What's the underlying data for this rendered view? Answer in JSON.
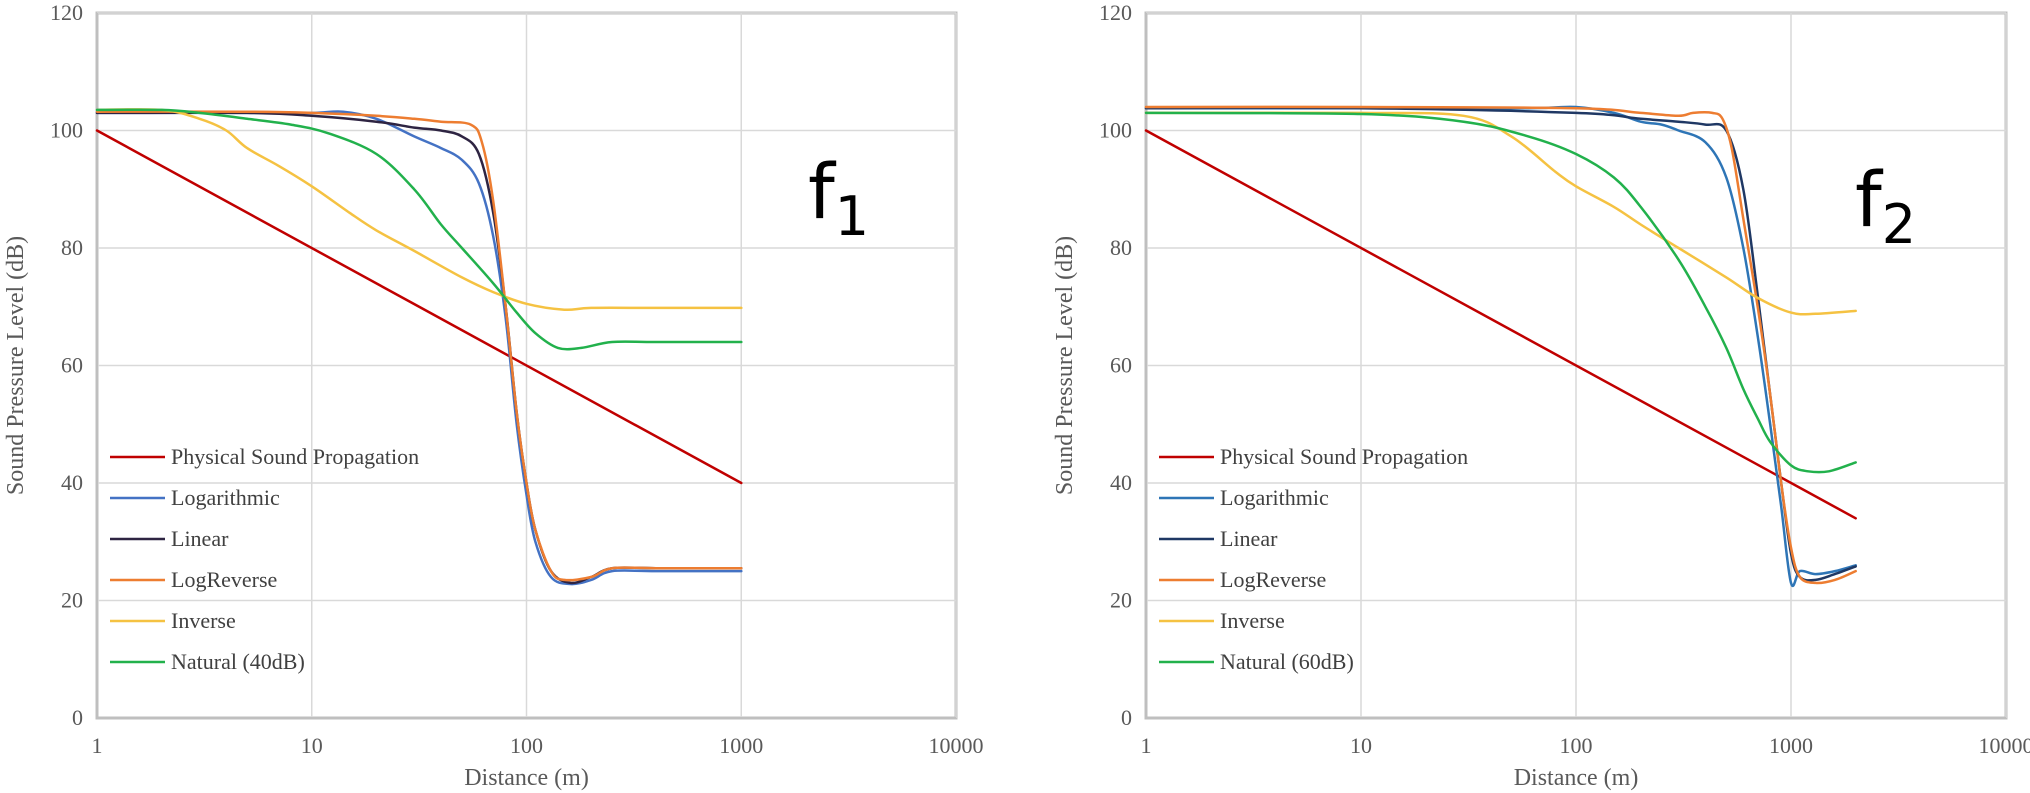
{
  "chart_data": [
    {
      "type": "line",
      "annotation": {
        "base": "f",
        "subscript": "1"
      },
      "xlabel": "Distance (m)",
      "ylabel": "Sound Pressure Level (dB)",
      "xscale": "log",
      "xlim": [
        1,
        10000
      ],
      "ylim": [
        0,
        120
      ],
      "xticks": [
        "1",
        "10",
        "100",
        "1000",
        "10000"
      ],
      "yticks": [
        "0",
        "20",
        "40",
        "60",
        "80",
        "100",
        "120"
      ],
      "grid": true,
      "legend_position": "bottom-left",
      "series": [
        {
          "name": "Physical Sound Propagation",
          "color": "#C00000",
          "points": [
            [
              1,
              100
            ],
            [
              1000,
              40
            ]
          ]
        },
        {
          "name": "Logarithmic",
          "color": "#4472C4",
          "points": [
            [
              1,
              103
            ],
            [
              5,
              103
            ],
            [
              10,
              103
            ],
            [
              14,
              103.2
            ],
            [
              20,
              102
            ],
            [
              30,
              99
            ],
            [
              40,
              97
            ],
            [
              50,
              95
            ],
            [
              60,
              91
            ],
            [
              70,
              82
            ],
            [
              80,
              68
            ],
            [
              90,
              50
            ],
            [
              100,
              38
            ],
            [
              110,
              30
            ],
            [
              130,
              24
            ],
            [
              160,
              22.8
            ],
            [
              200,
              23.5
            ],
            [
              250,
              25
            ],
            [
              400,
              25
            ],
            [
              1000,
              25
            ]
          ]
        },
        {
          "name": "Linear",
          "color": "#2E2442",
          "points": [
            [
              1,
              103
            ],
            [
              5,
              103
            ],
            [
              10,
              102.5
            ],
            [
              20,
              101.5
            ],
            [
              30,
              100.5
            ],
            [
              40,
              100
            ],
            [
              50,
              99
            ],
            [
              60,
              96
            ],
            [
              70,
              86
            ],
            [
              80,
              70
            ],
            [
              90,
              52
            ],
            [
              100,
              40
            ],
            [
              110,
              32
            ],
            [
              130,
              25
            ],
            [
              160,
              23
            ],
            [
              200,
              24
            ],
            [
              250,
              25.5
            ],
            [
              400,
              25.5
            ],
            [
              1000,
              25.5
            ]
          ]
        },
        {
          "name": "LogReverse",
          "color": "#ED7D31",
          "points": [
            [
              1,
              103.2
            ],
            [
              5,
              103.2
            ],
            [
              10,
              103
            ],
            [
              20,
              102.5
            ],
            [
              30,
              102
            ],
            [
              40,
              101.5
            ],
            [
              55,
              101
            ],
            [
              62,
              98
            ],
            [
              70,
              88
            ],
            [
              80,
              70
            ],
            [
              90,
              52
            ],
            [
              100,
              40
            ],
            [
              110,
              32
            ],
            [
              130,
              25
            ],
            [
              150,
              23.5
            ],
            [
              200,
              24
            ],
            [
              250,
              25.5
            ],
            [
              400,
              25.5
            ],
            [
              1000,
              25.5
            ]
          ]
        },
        {
          "name": "Inverse",
          "color": "#F5C242",
          "points": [
            [
              1,
              103.5
            ],
            [
              2,
              103.5
            ],
            [
              3,
              102
            ],
            [
              4,
              100
            ],
            [
              5,
              97
            ],
            [
              7,
              94
            ],
            [
              10,
              90.5
            ],
            [
              15,
              86
            ],
            [
              20,
              83
            ],
            [
              30,
              79.5
            ],
            [
              50,
              75
            ],
            [
              70,
              72.5
            ],
            [
              100,
              70.5
            ],
            [
              150,
              69.5
            ],
            [
              200,
              69.8
            ],
            [
              400,
              69.8
            ],
            [
              1000,
              69.8
            ]
          ]
        },
        {
          "name": "Natural (40dB)",
          "color": "#22B14C",
          "points": [
            [
              1,
              103.5
            ],
            [
              2,
              103.5
            ],
            [
              3,
              103
            ],
            [
              5,
              102
            ],
            [
              8,
              101
            ],
            [
              12,
              99.5
            ],
            [
              20,
              96
            ],
            [
              30,
              90
            ],
            [
              40,
              84
            ],
            [
              50,
              80
            ],
            [
              70,
              74
            ],
            [
              90,
              69
            ],
            [
              110,
              65.5
            ],
            [
              140,
              63
            ],
            [
              180,
              63
            ],
            [
              250,
              64
            ],
            [
              400,
              64
            ],
            [
              1000,
              64
            ]
          ]
        }
      ]
    },
    {
      "type": "line",
      "annotation": {
        "base": "f",
        "subscript": "2"
      },
      "xlabel": "Distance (m)",
      "ylabel": "Sound Pressure Level (dB)",
      "xscale": "log",
      "xlim": [
        1,
        10000
      ],
      "ylim": [
        0,
        120
      ],
      "xticks": [
        "1",
        "10",
        "100",
        "1000",
        "10000"
      ],
      "yticks": [
        "0",
        "20",
        "40",
        "60",
        "80",
        "100",
        "120"
      ],
      "grid": true,
      "legend_position": "bottom-left",
      "series": [
        {
          "name": "Physical Sound Propagation",
          "color": "#C00000",
          "points": [
            [
              1,
              100
            ],
            [
              2000,
              34
            ]
          ]
        },
        {
          "name": "Logarithmic",
          "color": "#2E75B6",
          "points": [
            [
              1,
              103.8
            ],
            [
              10,
              103.8
            ],
            [
              60,
              103.8
            ],
            [
              100,
              104
            ],
            [
              150,
              103
            ],
            [
              200,
              101.5
            ],
            [
              250,
              101
            ],
            [
              300,
              100
            ],
            [
              400,
              98
            ],
            [
              500,
              92
            ],
            [
              600,
              80
            ],
            [
              700,
              65
            ],
            [
              800,
              50
            ],
            [
              900,
              36
            ],
            [
              1000,
              23
            ],
            [
              1100,
              25
            ],
            [
              1300,
              24.5
            ],
            [
              1600,
              25
            ],
            [
              2000,
              26
            ]
          ]
        },
        {
          "name": "Linear",
          "color": "#1F3864",
          "points": [
            [
              1,
              103.8
            ],
            [
              10,
              103.8
            ],
            [
              100,
              103
            ],
            [
              200,
              102
            ],
            [
              300,
              101.5
            ],
            [
              400,
              101
            ],
            [
              500,
              100
            ],
            [
              600,
              90
            ],
            [
              700,
              72
            ],
            [
              800,
              55
            ],
            [
              900,
              40
            ],
            [
              1000,
              28
            ],
            [
              1100,
              24
            ],
            [
              1300,
              23.5
            ],
            [
              1600,
              24.5
            ],
            [
              2000,
              25.8
            ]
          ]
        },
        {
          "name": "LogReverse",
          "color": "#ED7D31",
          "points": [
            [
              1,
              104
            ],
            [
              10,
              104
            ],
            [
              100,
              103.8
            ],
            [
              200,
              103
            ],
            [
              300,
              102.5
            ],
            [
              350,
              103
            ],
            [
              430,
              103
            ],
            [
              480,
              102
            ],
            [
              530,
              97
            ],
            [
              600,
              85
            ],
            [
              700,
              70
            ],
            [
              800,
              55
            ],
            [
              900,
              40
            ],
            [
              1000,
              29
            ],
            [
              1100,
              24
            ],
            [
              1300,
              23
            ],
            [
              1600,
              23.5
            ],
            [
              2000,
              25
            ]
          ]
        },
        {
          "name": "Inverse",
          "color": "#F5C242",
          "points": [
            [
              1,
              103
            ],
            [
              10,
              103
            ],
            [
              30,
              102.5
            ],
            [
              50,
              99
            ],
            [
              80,
              93
            ],
            [
              100,
              90.5
            ],
            [
              150,
              87
            ],
            [
              200,
              84
            ],
            [
              300,
              80
            ],
            [
              500,
              75
            ],
            [
              700,
              71.5
            ],
            [
              1000,
              69
            ],
            [
              1300,
              68.8
            ],
            [
              2000,
              69.3
            ]
          ]
        },
        {
          "name": "Natural (60dB)",
          "color": "#22B14C",
          "points": [
            [
              1,
              103
            ],
            [
              10,
              102.8
            ],
            [
              30,
              101.5
            ],
            [
              60,
              99
            ],
            [
              100,
              96
            ],
            [
              150,
              92
            ],
            [
              200,
              87
            ],
            [
              300,
              78
            ],
            [
              400,
              70
            ],
            [
              500,
              63
            ],
            [
              600,
              56
            ],
            [
              700,
              51
            ],
            [
              800,
              47
            ],
            [
              1000,
              43
            ],
            [
              1200,
              42
            ],
            [
              1500,
              42
            ],
            [
              2000,
              43.5
            ]
          ]
        }
      ]
    }
  ]
}
